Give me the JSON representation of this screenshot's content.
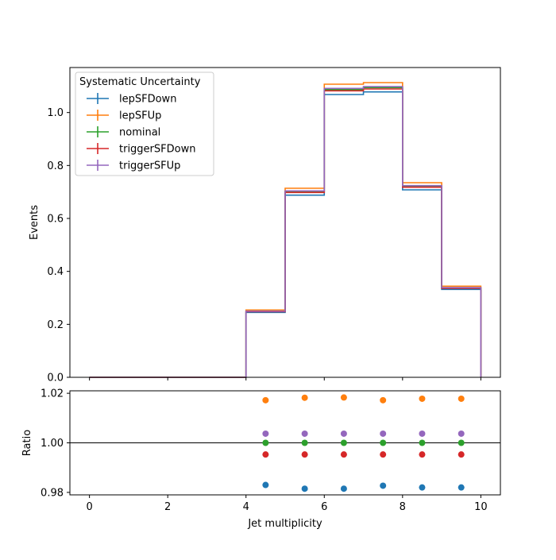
{
  "chart_data": [
    {
      "type": "step",
      "panel": "main",
      "xlabel": "",
      "ylabel": "Events",
      "xlim": [
        -0.5,
        10.5
      ],
      "ylim": [
        0,
        1.17
      ],
      "yticks": [
        0.0,
        0.2,
        0.4,
        0.6,
        0.8,
        1.0
      ],
      "ytick_labels": [
        "0.0",
        "0.2",
        "0.4",
        "0.6",
        "0.8",
        "1.0"
      ],
      "bin_edges": [
        0,
        1,
        2,
        3,
        4,
        5,
        6,
        7,
        8,
        9,
        10
      ],
      "legend": {
        "title": "Systematic Uncertainty",
        "placement": "top-left"
      },
      "series": [
        {
          "name": "lepSFDown",
          "color": "#1f77b4",
          "values": [
            0,
            0,
            0,
            0,
            0.245,
            0.688,
            1.068,
            1.078,
            0.708,
            0.332
          ]
        },
        {
          "name": "lepSFUp",
          "color": "#ff7f0e",
          "values": [
            0,
            0,
            0,
            0,
            0.254,
            0.714,
            1.107,
            1.113,
            0.735,
            0.344
          ]
        },
        {
          "name": "nominal",
          "color": "#2ca02c",
          "values": [
            0,
            0,
            0,
            0,
            0.249,
            0.701,
            1.087,
            1.094,
            0.721,
            0.338
          ]
        },
        {
          "name": "triggerSFDown",
          "color": "#d62728",
          "values": [
            0,
            0,
            0,
            0,
            0.248,
            0.698,
            1.082,
            1.089,
            0.718,
            0.336
          ]
        },
        {
          "name": "triggerSFUp",
          "color": "#9467bd",
          "values": [
            0,
            0,
            0,
            0,
            0.25,
            0.704,
            1.091,
            1.098,
            0.724,
            0.339
          ]
        }
      ]
    },
    {
      "type": "scatter",
      "panel": "ratio",
      "xlabel": "Jet multiplicity",
      "ylabel": "Ratio",
      "xlim": [
        -0.5,
        10.5
      ],
      "ylim": [
        0.979,
        1.021
      ],
      "xticks": [
        0,
        2,
        4,
        6,
        8,
        10
      ],
      "xtick_labels": [
        "0",
        "2",
        "4",
        "6",
        "8",
        "10"
      ],
      "yticks": [
        0.98,
        1.0,
        1.02
      ],
      "ytick_labels": [
        "0.98",
        "1.00",
        "1.02"
      ],
      "reference_line": 1.0,
      "x": [
        4.5,
        5.5,
        6.5,
        7.5,
        8.5,
        9.5
      ],
      "series": [
        {
          "name": "lepSFDown",
          "color": "#1f77b4",
          "values": [
            0.983,
            0.9815,
            0.9815,
            0.9827,
            0.982,
            0.982
          ]
        },
        {
          "name": "lepSFUp",
          "color": "#ff7f0e",
          "values": [
            1.0172,
            1.0182,
            1.0183,
            1.0172,
            1.0178,
            1.0178
          ]
        },
        {
          "name": "nominal",
          "color": "#2ca02c",
          "values": [
            1.0,
            1.0,
            1.0,
            1.0,
            1.0,
            1.0
          ]
        },
        {
          "name": "triggerSFDown",
          "color": "#d62728",
          "values": [
            0.9953,
            0.9953,
            0.9953,
            0.9953,
            0.9953,
            0.9953
          ]
        },
        {
          "name": "triggerSFUp",
          "color": "#9467bd",
          "values": [
            1.0037,
            1.0037,
            1.0037,
            1.0037,
            1.0037,
            1.0037
          ]
        }
      ]
    }
  ]
}
